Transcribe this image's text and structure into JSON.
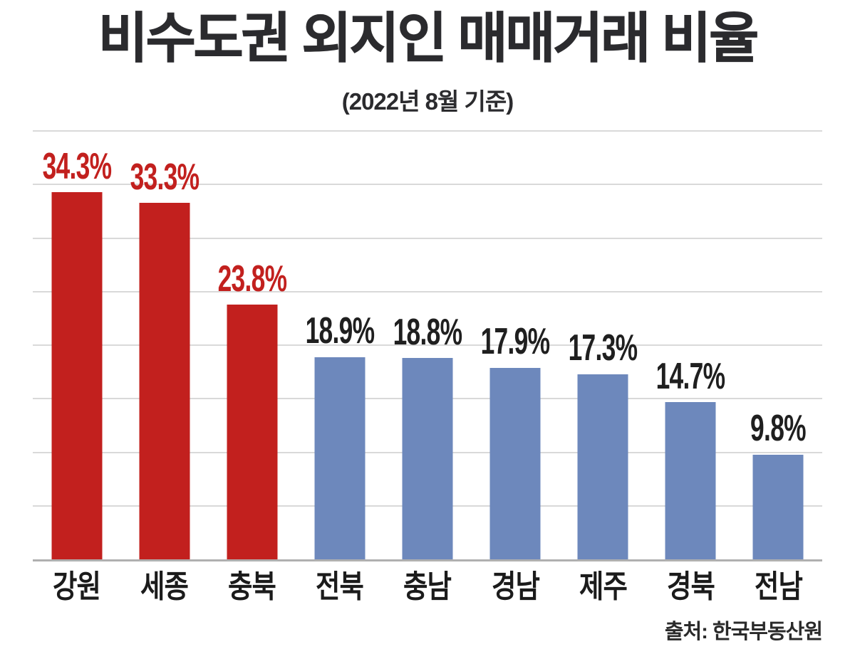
{
  "colors": {
    "background": "#ffffff",
    "highlight_red": "#c2201e",
    "bar_blue": "#6d88bc",
    "value_label_dark": "#1f1f1f",
    "gridline": "#d9d9d9",
    "baseline": "#b0b0b0",
    "title_text": "#2b2b2e"
  },
  "chart_data": {
    "type": "bar",
    "title": "비수도권 외지인 매매거래 비율",
    "subtitle": "(2022년 8월 기준)",
    "source": "출처: 한국부동산원",
    "categories": [
      "강원",
      "세종",
      "충북",
      "전북",
      "충남",
      "경남",
      "제주",
      "경북",
      "전남"
    ],
    "values": [
      34.3,
      33.3,
      23.8,
      18.9,
      18.8,
      17.9,
      17.3,
      14.7,
      9.8
    ],
    "value_labels": [
      "34.3%",
      "33.3%",
      "23.8%",
      "18.9%",
      "18.8%",
      "17.9%",
      "17.3%",
      "14.7%",
      "9.8%"
    ],
    "bar_colors": [
      "#c2201e",
      "#c2201e",
      "#c2201e",
      "#6d88bc",
      "#6d88bc",
      "#6d88bc",
      "#6d88bc",
      "#6d88bc",
      "#6d88bc"
    ],
    "value_label_colors": [
      "#c2201e",
      "#c2201e",
      "#c2201e",
      "#1f1f1f",
      "#1f1f1f",
      "#1f1f1f",
      "#1f1f1f",
      "#1f1f1f",
      "#1f1f1f"
    ],
    "highlighted_categories": [
      "강원",
      "세종",
      "충북"
    ],
    "xlabel": "",
    "ylabel": "",
    "ylim": [
      0,
      40
    ],
    "gridline_step": 5,
    "grid": true,
    "legend": false
  }
}
